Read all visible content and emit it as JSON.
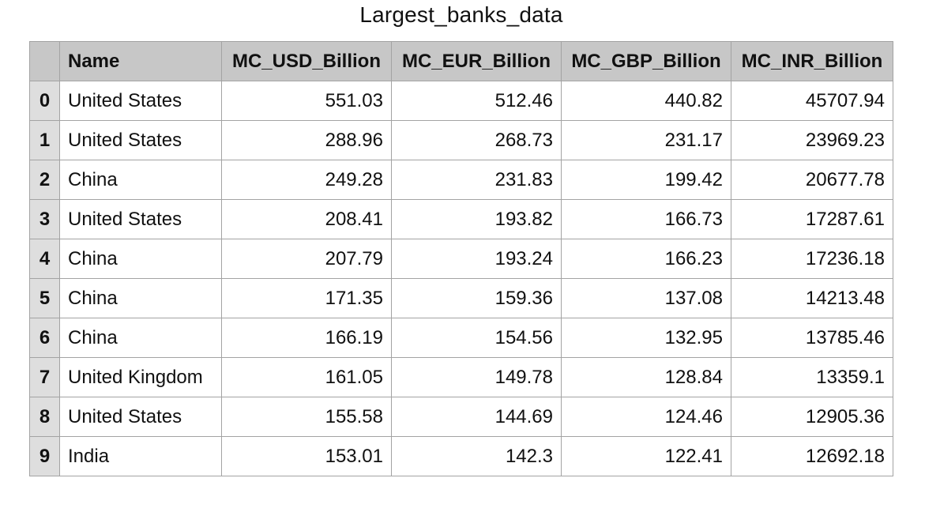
{
  "chart_data": {
    "type": "table",
    "title": "Largest_banks_data",
    "columns": [
      "Name",
      "MC_USD_Billion",
      "MC_EUR_Billion",
      "MC_GBP_Billion",
      "MC_INR_Billion"
    ],
    "rows": [
      {
        "index": "0",
        "cells": [
          "United States",
          "551.03",
          "512.46",
          "440.82",
          "45707.94"
        ]
      },
      {
        "index": "1",
        "cells": [
          "United States",
          "288.96",
          "268.73",
          "231.17",
          "23969.23"
        ]
      },
      {
        "index": "2",
        "cells": [
          "China",
          "249.28",
          "231.83",
          "199.42",
          "20677.78"
        ]
      },
      {
        "index": "3",
        "cells": [
          "United States",
          "208.41",
          "193.82",
          "166.73",
          "17287.61"
        ]
      },
      {
        "index": "4",
        "cells": [
          "China",
          "207.79",
          "193.24",
          "166.23",
          "17236.18"
        ]
      },
      {
        "index": "5",
        "cells": [
          "China",
          "171.35",
          "159.36",
          "137.08",
          "14213.48"
        ]
      },
      {
        "index": "6",
        "cells": [
          "China",
          "166.19",
          "154.56",
          "132.95",
          "13785.46"
        ]
      },
      {
        "index": "7",
        "cells": [
          "United Kingdom",
          "161.05",
          "149.78",
          "128.84",
          "13359.1"
        ]
      },
      {
        "index": "8",
        "cells": [
          "United States",
          "155.58",
          "144.69",
          "124.46",
          "12905.36"
        ]
      },
      {
        "index": "9",
        "cells": [
          "India",
          "153.01",
          "142.3",
          "122.41",
          "12692.18"
        ]
      }
    ]
  },
  "colors": {
    "header_background": "#c7c7c7",
    "index_background": "#dedede",
    "cell_background": "#ffffff",
    "border": "#a3a3a3"
  }
}
